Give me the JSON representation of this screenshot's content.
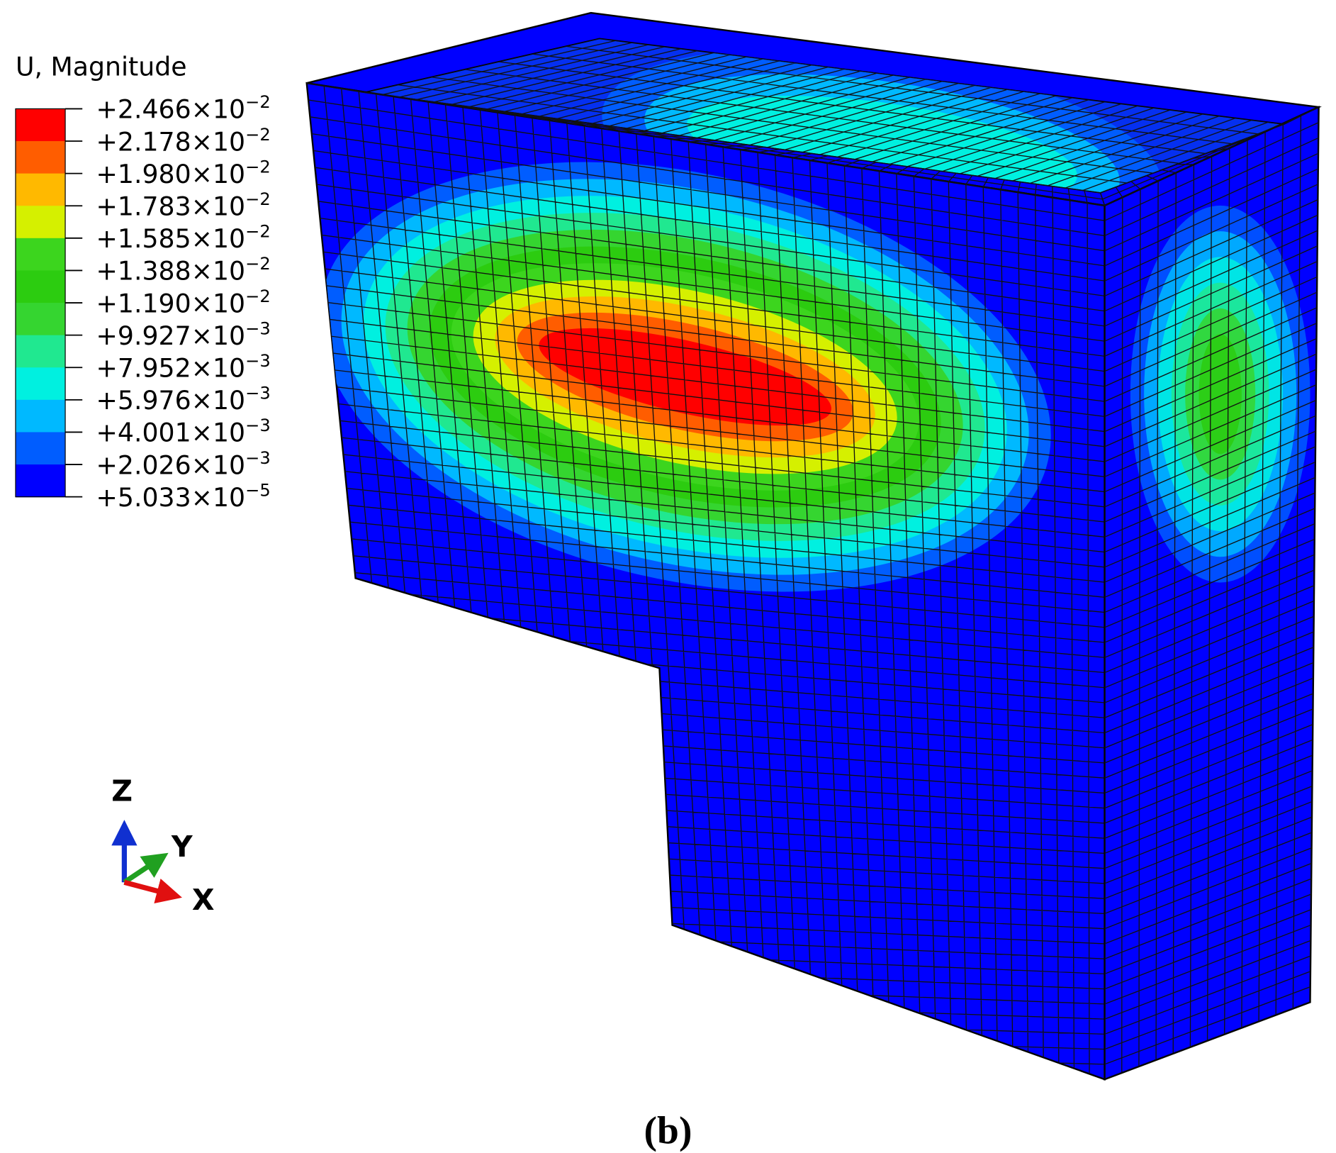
{
  "legend": {
    "title": "U, Magnitude",
    "labels": [
      {
        "mantissa": "+2.466×10",
        "exponent": "−2"
      },
      {
        "mantissa": "+2.178×10",
        "exponent": "−2"
      },
      {
        "mantissa": "+1.980×10",
        "exponent": "−2"
      },
      {
        "mantissa": "+1.783×10",
        "exponent": "−2"
      },
      {
        "mantissa": "+1.585×10",
        "exponent": "−2"
      },
      {
        "mantissa": "+1.388×10",
        "exponent": "−2"
      },
      {
        "mantissa": "+1.190×10",
        "exponent": "−2"
      },
      {
        "mantissa": "+9.927×10",
        "exponent": "−3"
      },
      {
        "mantissa": "+7.952×10",
        "exponent": "−3"
      },
      {
        "mantissa": "+5.976×10",
        "exponent": "−3"
      },
      {
        "mantissa": "+4.001×10",
        "exponent": "−3"
      },
      {
        "mantissa": "+2.026×10",
        "exponent": "−3"
      },
      {
        "mantissa": "+5.033×10",
        "exponent": "−5"
      }
    ],
    "colors": [
      "#ff0000",
      "#ff5d00",
      "#ffb900",
      "#d5f000",
      "#3cd51e",
      "#2ccc10",
      "#35d530",
      "#20e890",
      "#00f0e0",
      "#00b9ff",
      "#005dff",
      "#0000ff"
    ]
  },
  "triad": {
    "z": "Z",
    "y": "Y",
    "x": "X"
  },
  "caption": "(b)"
}
